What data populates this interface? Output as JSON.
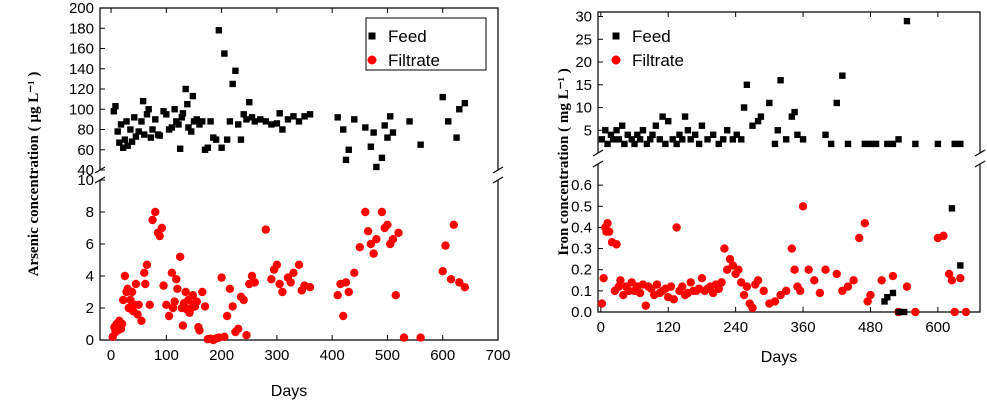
{
  "chart_data": [
    {
      "type": "scatter",
      "xlabel": "Days",
      "ylabel": "Arsenic concentration ( µg L⁻¹ )",
      "x_ticks": [
        "0",
        "100",
        "200",
        "300",
        "400",
        "500",
        "600",
        "700"
      ],
      "xlim": [
        -20,
        700
      ],
      "break_axis": true,
      "upper_ylim": [
        40,
        200
      ],
      "upper_ticks": [
        "40",
        "60",
        "80",
        "100",
        "120",
        "140",
        "160",
        "180",
        "200"
      ],
      "lower_ylim": [
        0,
        10
      ],
      "lower_ticks": [
        "0",
        "2",
        "4",
        "6",
        "8",
        "10"
      ],
      "legend_position": "top-right",
      "series": [
        {
          "name": "Feed",
          "color": "#000000",
          "marker": "square",
          "x": [
            5,
            8,
            12,
            15,
            18,
            22,
            25,
            28,
            30,
            35,
            38,
            42,
            45,
            50,
            55,
            58,
            60,
            65,
            68,
            72,
            75,
            80,
            85,
            88,
            95,
            100,
            105,
            110,
            115,
            118,
            122,
            125,
            128,
            130,
            135,
            138,
            140,
            145,
            148,
            150,
            155,
            160,
            165,
            170,
            175,
            180,
            185,
            190,
            195,
            200,
            205,
            210,
            215,
            220,
            225,
            230,
            235,
            240,
            245,
            250,
            255,
            260,
            270,
            280,
            290,
            300,
            305,
            310,
            320,
            330,
            340,
            350,
            360,
            410,
            420,
            425,
            430,
            440,
            460,
            470,
            475,
            480,
            490,
            495,
            500,
            505,
            510,
            540,
            560,
            600,
            610,
            625,
            630,
            640
          ],
          "y": [
            98,
            103,
            78,
            67,
            85,
            62,
            70,
            88,
            64,
            80,
            68,
            92,
            73,
            78,
            88,
            108,
            75,
            95,
            100,
            72,
            80,
            90,
            75,
            74,
            98,
            95,
            80,
            82,
            100,
            88,
            85,
            61,
            92,
            96,
            120,
            105,
            82,
            78,
            113,
            88,
            90,
            85,
            88,
            60,
            62,
            88,
            72,
            70,
            178,
            62,
            155,
            70,
            88,
            125,
            138,
            85,
            70,
            95,
            90,
            107,
            92,
            88,
            90,
            88,
            85,
            86,
            96,
            80,
            90,
            93,
            88,
            93,
            95,
            92,
            80,
            50,
            60,
            90,
            82,
            63,
            77,
            43,
            52,
            84,
            72,
            93,
            77,
            88,
            65,
            112,
            88,
            72,
            100,
            106
          ]
        },
        {
          "name": "Filtrate",
          "color": "#ff0000",
          "marker": "circle",
          "x": [
            3,
            6,
            8,
            10,
            12,
            15,
            18,
            20,
            22,
            25,
            28,
            30,
            32,
            35,
            38,
            40,
            42,
            45,
            48,
            50,
            55,
            60,
            62,
            65,
            70,
            75,
            80,
            85,
            88,
            92,
            95,
            100,
            105,
            110,
            112,
            115,
            118,
            120,
            125,
            128,
            130,
            132,
            135,
            138,
            140,
            142,
            145,
            148,
            150,
            152,
            155,
            158,
            160,
            165,
            170,
            175,
            180,
            185,
            190,
            195,
            200,
            205,
            210,
            215,
            220,
            225,
            230,
            235,
            240,
            245,
            250,
            255,
            260,
            280,
            290,
            295,
            300,
            305,
            310,
            320,
            325,
            330,
            340,
            345,
            350,
            360,
            410,
            415,
            420,
            425,
            430,
            440,
            450,
            460,
            465,
            470,
            475,
            480,
            490,
            495,
            500,
            505,
            510,
            515,
            520,
            530,
            560,
            600,
            605,
            615,
            620,
            630,
            640
          ],
          "y": [
            0.2,
            0.8,
            0.5,
            1.0,
            0.6,
            1.2,
            0.7,
            1.0,
            2.5,
            4.0,
            3.0,
            3.2,
            2.0,
            2.5,
            3.0,
            1.8,
            2.2,
            3.5,
            1.6,
            2.2,
            1.2,
            4.2,
            3.5,
            4.7,
            2.2,
            7.5,
            8.0,
            6.7,
            6.5,
            7.0,
            3.4,
            2.2,
            1.5,
            4.2,
            2.0,
            2.4,
            3.8,
            3.2,
            5.2,
            2.0,
            0.9,
            2.3,
            3.0,
            1.9,
            2.5,
            1.7,
            2.0,
            2.8,
            2.2,
            2.1,
            2.4,
            0.8,
            0.6,
            3.0,
            2.1,
            0.05,
            0.08,
            0.0,
            0.1,
            0.15,
            3.9,
            0.2,
            1.5,
            3.2,
            2.1,
            0.5,
            0.7,
            2.7,
            2.5,
            0.3,
            3.5,
            4.0,
            3.6,
            6.9,
            3.8,
            4.4,
            4.7,
            3.5,
            3.0,
            3.9,
            3.6,
            4.2,
            4.7,
            3.1,
            3.4,
            3.3,
            2.8,
            3.5,
            1.5,
            3.6,
            3.0,
            4.2,
            5.8,
            8.0,
            6.8,
            6.0,
            5.4,
            6.3,
            8.0,
            7.0,
            7.2,
            6.0,
            6.3,
            2.8,
            6.7,
            0.15,
            0.15,
            4.3,
            5.9,
            3.8,
            7.2,
            3.6,
            3.3
          ]
        }
      ]
    },
    {
      "type": "scatter",
      "xlabel": "Days",
      "ylabel": "Iron concentration ( mg L⁻¹ )",
      "x_ticks": [
        "0",
        "120",
        "240",
        "360",
        "480",
        "600"
      ],
      "xlim": [
        -5,
        675
      ],
      "break_axis": true,
      "upper_ylim": [
        0,
        31
      ],
      "upper_ticks": [
        "5",
        "10",
        "15",
        "20",
        "25",
        "30"
      ],
      "lower_ylim": [
        0,
        0.7
      ],
      "lower_ticks": [
        "0.0",
        "0.1",
        "0.2",
        "0.3",
        "0.4",
        "0.5",
        "0.6"
      ],
      "legend_position": "top-left",
      "series": [
        {
          "name": "Feed",
          "color": "#000000",
          "marker": "square",
          "x": [
            2,
            8,
            12,
            18,
            22,
            28,
            32,
            38,
            42,
            48,
            55,
            60,
            65,
            70,
            75,
            82,
            88,
            92,
            98,
            105,
            110,
            115,
            120,
            128,
            135,
            140,
            145,
            150,
            155,
            160,
            168,
            175,
            180,
            190,
            200,
            210,
            218,
            225,
            235,
            242,
            250,
            255,
            260,
            270,
            280,
            285,
            300,
            310,
            315,
            320,
            330,
            340,
            345,
            350,
            360,
            400,
            410,
            420,
            430,
            440,
            470,
            480,
            490,
            510,
            520,
            530,
            545,
            560,
            600,
            630,
            640
          ],
          "y": [
            3,
            5,
            2,
            4,
            3,
            5,
            3,
            6,
            2,
            4,
            3,
            2,
            4,
            3,
            5,
            2,
            3,
            4,
            6,
            3,
            8,
            2,
            7,
            3,
            2,
            4,
            3,
            8,
            5,
            3,
            4,
            2,
            6,
            3,
            4,
            2,
            3,
            5,
            3,
            4,
            3,
            10,
            15,
            6,
            7,
            8,
            11,
            2,
            5,
            16,
            3,
            8,
            9,
            4,
            3,
            4,
            2,
            11,
            17,
            2,
            2,
            2,
            2,
            2,
            2,
            3,
            29,
            2,
            2,
            2,
            2
          ]
        },
        {
          "name": "Filtrate",
          "color": "#ff0000",
          "marker": "circle",
          "x": [
            2,
            5,
            8,
            10,
            12,
            15,
            20,
            25,
            28,
            32,
            35,
            40,
            45,
            50,
            55,
            60,
            65,
            70,
            75,
            80,
            85,
            90,
            95,
            100,
            105,
            110,
            115,
            120,
            125,
            130,
            135,
            140,
            145,
            150,
            155,
            160,
            165,
            170,
            175,
            180,
            185,
            190,
            195,
            200,
            205,
            210,
            215,
            220,
            225,
            230,
            235,
            240,
            245,
            250,
            255,
            260,
            265,
            270,
            275,
            280,
            290,
            300,
            310,
            320,
            330,
            340,
            345,
            350,
            355,
            360,
            370,
            380,
            390,
            400,
            420,
            430,
            440,
            450,
            460,
            470,
            475,
            480,
            500,
            520,
            530,
            545,
            560,
            600,
            610,
            620,
            625,
            630,
            640,
            650
          ],
          "y": [
            0.04,
            0.16,
            0.4,
            0.38,
            0.42,
            0.38,
            0.33,
            0.1,
            0.32,
            0.12,
            0.15,
            0.08,
            0.12,
            0.1,
            0.14,
            0.1,
            0.12,
            0.09,
            0.13,
            0.03,
            0.12,
            0.11,
            0.08,
            0.13,
            0.09,
            0.1,
            0.11,
            0.07,
            0.12,
            0.06,
            0.4,
            0.1,
            0.12,
            0.08,
            0.09,
            0.14,
            0.1,
            0.1,
            0.11,
            0.16,
            0.1,
            0.11,
            0.12,
            0.09,
            0.13,
            0.11,
            0.14,
            0.3,
            0.2,
            0.25,
            0.22,
            0.18,
            0.2,
            0.14,
            0.08,
            0.12,
            0.04,
            0.02,
            0.13,
            0.15,
            0.1,
            0.04,
            0.05,
            0.08,
            0.1,
            0.3,
            0.2,
            0.12,
            0.1,
            0.5,
            0.2,
            0.15,
            0.09,
            0.2,
            0.18,
            0.1,
            0.12,
            0.15,
            0.35,
            0.42,
            0.05,
            0.08,
            0.15,
            0.17,
            0.0,
            0.12,
            0.0,
            0.35,
            0.36,
            0.18,
            0.15,
            0.0,
            0.16,
            0.0
          ]
        },
        {
          "name": "",
          "color": "#000000",
          "marker": "square",
          "note_series": "lower-feed",
          "x": [
            505,
            510,
            520,
            530,
            540,
            625,
            640
          ],
          "y": [
            0.05,
            0.07,
            0.09,
            0.0,
            0.0,
            0.49,
            0.22
          ]
        }
      ]
    }
  ]
}
